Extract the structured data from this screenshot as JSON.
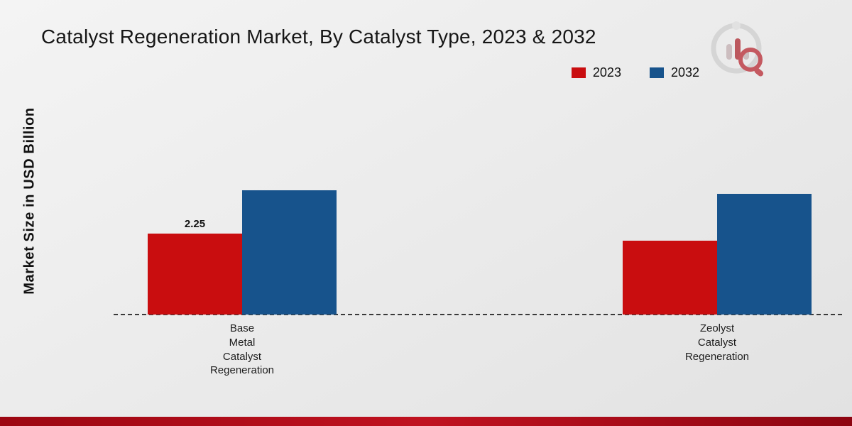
{
  "page": {
    "title": "Catalyst Regeneration Market, By Catalyst Type, 2023 & 2032",
    "ylabel": "Market Size in USD Billion"
  },
  "colors": {
    "red": "#c90d0f",
    "blue": "#17538c",
    "strip": "#a80b16"
  },
  "chart_data": {
    "type": "bar",
    "title": "Catalyst Regeneration Market, By Catalyst Type, 2023 & 2032",
    "xlabel": "",
    "ylabel": "Market Size in USD Billion",
    "legend_position": "top-right",
    "grid": false,
    "baseline_style": "dashed",
    "ylim": [
      0,
      4
    ],
    "categories": [
      "Base Metal Catalyst Regeneration",
      "Zeolyst Catalyst Regeneration"
    ],
    "category_lines": [
      [
        "Base",
        "Metal",
        "Catalyst",
        "Regeneration"
      ],
      [
        "Zeolyst",
        "Catalyst",
        "Regeneration"
      ]
    ],
    "series": [
      {
        "name": "2023",
        "color": "#c90d0f",
        "values": [
          2.25,
          2.05
        ]
      },
      {
        "name": "2032",
        "color": "#17538c",
        "values": [
          3.45,
          3.35
        ]
      }
    ],
    "annotations": [
      {
        "text": "2.25",
        "group": 0,
        "series": 0
      }
    ]
  }
}
